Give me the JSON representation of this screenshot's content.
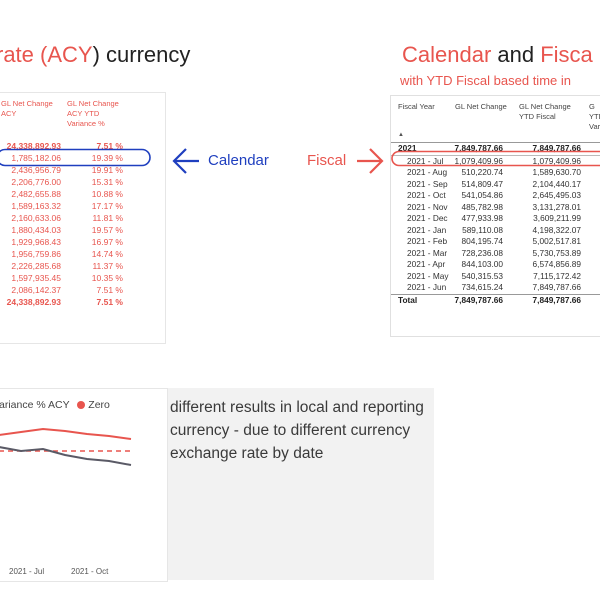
{
  "left_heading": {
    "prefix": "rate (",
    "acy": "ACY",
    "suffix": ") currency"
  },
  "right_heading": {
    "calendar": "Calendar",
    "and": " and ",
    "fisca": "Fisca"
  },
  "right_subheading": "with YTD Fiscal based time in",
  "left_table": {
    "col1_header": [
      "GL Net Change",
      "ACY"
    ],
    "col2_header": [
      "GL Net Change",
      "ACY YTD",
      "Variance %"
    ],
    "rows": [
      {
        "a": "24,338,892.93",
        "b": "7.51 %",
        "bold": true
      },
      {
        "a": "1,785,182.06",
        "b": "19.39 %"
      },
      {
        "a": "2,436,956.79",
        "b": "19.91 %"
      },
      {
        "a": "2,206,776.00",
        "b": "15.31 %"
      },
      {
        "a": "2,482,655.88",
        "b": "10.88 %"
      },
      {
        "a": "1,589,163.32",
        "b": "17.17 %"
      },
      {
        "a": "2,160,633.06",
        "b": "11.81 %"
      },
      {
        "a": "1,880,434.03",
        "b": "19.57 %"
      },
      {
        "a": "1,929,968.43",
        "b": "16.97 %"
      },
      {
        "a": "1,956,759.86",
        "b": "14.74 %"
      },
      {
        "a": "2,226,285.68",
        "b": "11.37 %"
      },
      {
        "a": "1,597,935.45",
        "b": "10.35 %"
      },
      {
        "a": "2,086,142.37",
        "b": "7.51 %"
      },
      {
        "a": "24,338,892.93",
        "b": "7.51 %",
        "bold": true
      }
    ]
  },
  "right_table": {
    "headers": {
      "fiscal_year": "Fiscal Year",
      "gl_net_change": "GL Net Change",
      "gl_net_change_ytd": [
        "GL Net Change",
        "YTD Fiscal"
      ],
      "extra": [
        "G",
        "YTD",
        "Vari"
      ]
    },
    "rows": [
      {
        "label": "2021",
        "v1": "7,849,787.66",
        "v2": "7,849,787.66",
        "kind": "year"
      },
      {
        "label": "2021 - Jul",
        "v1": "1,079,409.96",
        "v2": "1,079,409.96"
      },
      {
        "label": "2021 - Aug",
        "v1": "510,220.74",
        "v2": "1,589,630.70"
      },
      {
        "label": "2021 - Sep",
        "v1": "514,809.47",
        "v2": "2,104,440.17"
      },
      {
        "label": "2021 - Oct",
        "v1": "541,054.86",
        "v2": "2,645,495.03"
      },
      {
        "label": "2021 - Nov",
        "v1": "485,782.98",
        "v2": "3,131,278.01"
      },
      {
        "label": "2021 - Dec",
        "v1": "477,933.98",
        "v2": "3,609,211.99"
      },
      {
        "label": "2021 - Jan",
        "v1": "589,110.08",
        "v2": "4,198,322.07"
      },
      {
        "label": "2021 - Feb",
        "v1": "804,195.74",
        "v2": "5,002,517.81"
      },
      {
        "label": "2021 - Mar",
        "v1": "728,236.08",
        "v2": "5,730,753.89"
      },
      {
        "label": "2021 - Apr",
        "v1": "844,103.00",
        "v2": "6,574,856.89"
      },
      {
        "label": "2021 - May",
        "v1": "540,315.53",
        "v2": "7,115,172.42"
      },
      {
        "label": "2021 - Jun",
        "v1": "734,615.24",
        "v2": "7,849,787.66"
      },
      {
        "label": "Total",
        "v1": "7,849,787.66",
        "v2": "7,849,787.66",
        "kind": "total"
      }
    ]
  },
  "annotations": {
    "calendar": "Calendar",
    "fiscal": "Fiscal"
  },
  "colors": {
    "blue": "#1f3fbf",
    "red": "#e8554e",
    "gray_line": "#5a5a66"
  },
  "chart": {
    "legend_text": "ariance % ACY",
    "legend_zero": "Zero",
    "x_labels": [
      "2021 - Jul",
      "2021 - Oct"
    ]
  },
  "note": "different results in local and reporting currency - due to different currency exchange rate by date",
  "chart_data": {
    "type": "line",
    "series": [
      {
        "name": "ariance % ACY",
        "color": "#e8554e"
      },
      {
        "name": "",
        "color": "#5a5a66"
      },
      {
        "name": "Zero",
        "color": "#e8554e",
        "style": "dashed"
      }
    ],
    "x_tick_labels": [
      "2021 - Jul",
      "2021 - Oct"
    ],
    "legend": "top"
  }
}
